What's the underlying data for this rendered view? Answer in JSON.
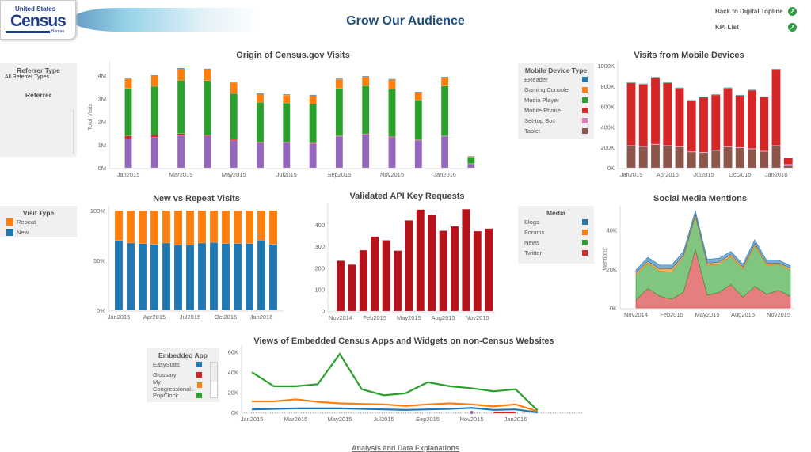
{
  "header": {
    "logo_text": [
      "United States",
      "Census",
      "Bureau"
    ],
    "title": "Grow Our Audience",
    "links": [
      {
        "label": "Back to Digital Topline",
        "icon": "arrow-circle-icon"
      },
      {
        "label": "KPI List",
        "icon": "arrow-circle-icon"
      }
    ]
  },
  "filters": {
    "referrer_type": {
      "title": "Referrer Type",
      "value": "All Referrer Types"
    },
    "referrer": {
      "title": "Referrer"
    }
  },
  "legends": {
    "mobile": {
      "title": "Mobile Device Type",
      "items": [
        {
          "label": "EReader",
          "color": "#1f77b4"
        },
        {
          "label": "Gaming Console",
          "color": "#ff7f0e"
        },
        {
          "label": "Media Player",
          "color": "#2ca02c"
        },
        {
          "label": "Mobile Phone",
          "color": "#d62728"
        },
        {
          "label": "Set-top Box",
          "color": "#e377c2"
        },
        {
          "label": "Tablet",
          "color": "#8c564b"
        }
      ]
    },
    "visit": {
      "title": "Visit Type",
      "items": [
        {
          "label": "Repeat",
          "color": "#ff7f0e"
        },
        {
          "label": "New",
          "color": "#1f77b4"
        }
      ]
    },
    "media": {
      "title": "Media",
      "items": [
        {
          "label": "Blogs",
          "color": "#1f77b4"
        },
        {
          "label": "Forums",
          "color": "#ff7f0e"
        },
        {
          "label": "News",
          "color": "#2ca02c"
        },
        {
          "label": "Twitter",
          "color": "#d62728"
        }
      ]
    },
    "embedded": {
      "title": "Embedded App",
      "items": [
        {
          "label": "EasyStats",
          "color": "#1f77b4"
        },
        {
          "label": "Glossary",
          "color": "#d62728"
        },
        {
          "label": "My Congressional..",
          "color": "#ff7f0e"
        },
        {
          "label": "PopClock",
          "color": "#2ca02c"
        }
      ]
    }
  },
  "chart_data": [
    {
      "id": "origin",
      "type": "bar",
      "stacked": true,
      "title": "Origin of Census.gov Visits",
      "ylabel": "Total Visits",
      "xlabel": "",
      "ylim": [
        0,
        4.4
      ],
      "unit": "M",
      "yticks": [
        "0M",
        "1M",
        "2M",
        "3M",
        "4M"
      ],
      "xticks": [
        "Jan2015",
        "Mar2015",
        "May2015",
        "Jul2015",
        "Sep2015",
        "Nov2015",
        "Jan2016"
      ],
      "categories": [
        "Jan2015",
        "Feb2015",
        "Mar2015",
        "Apr2015",
        "May2015",
        "Jun2015",
        "Jul2015",
        "Aug2015",
        "Sep2015",
        "Oct2015",
        "Nov2015",
        "Dec2015",
        "Jan2016",
        "Feb2016"
      ],
      "series": [
        {
          "color": "#9467bd",
          "values": [
            1.25,
            1.32,
            1.4,
            1.38,
            1.18,
            1.08,
            1.08,
            1.05,
            1.36,
            1.45,
            1.32,
            1.19,
            1.36,
            0.16
          ]
        },
        {
          "color": "#d62728",
          "values": [
            0.13,
            0.1,
            0.08,
            0.04,
            0.05,
            0.02,
            0.02,
            0.03,
            0.02,
            0.02,
            0.03,
            0.02,
            0.02,
            0.02
          ]
        },
        {
          "color": "#2ca02c",
          "values": [
            2.05,
            2.1,
            2.3,
            2.35,
            1.98,
            1.73,
            1.7,
            1.67,
            2.05,
            2.07,
            2.05,
            1.72,
            2.15,
            0.28
          ]
        },
        {
          "color": "#ff7f0e",
          "values": [
            0.43,
            0.45,
            0.5,
            0.48,
            0.48,
            0.36,
            0.34,
            0.37,
            0.39,
            0.39,
            0.41,
            0.32,
            0.37,
            0.03
          ]
        },
        {
          "color": "#1f77b4",
          "values": [
            0.03,
            0.03,
            0.03,
            0.03,
            0.03,
            0.03,
            0.03,
            0.03,
            0.03,
            0.03,
            0.03,
            0.03,
            0.03,
            0.02
          ]
        }
      ]
    },
    {
      "id": "mobile",
      "type": "bar",
      "stacked": true,
      "title": "Visits from Mobile Devices",
      "ylabel": "",
      "xlabel": "",
      "ylim": [
        0,
        1000
      ],
      "unit": "K",
      "yticks": [
        "0K",
        "200K",
        "400K",
        "600K",
        "800K",
        "1000K"
      ],
      "xticks": [
        "Jan2015",
        "Apr2015",
        "Jul2015",
        "Oct2015",
        "Jan2016"
      ],
      "categories": [
        "Jan2015",
        "Feb2015",
        "Mar2015",
        "Apr2015",
        "May2015",
        "Jun2015",
        "Jul2015",
        "Aug2015",
        "Sep2015",
        "Oct2015",
        "Nov2015",
        "Dec2015",
        "Jan2016",
        "Feb2016"
      ],
      "series": [
        {
          "name": "Tablet",
          "color": "#8c564b",
          "values": [
            215,
            208,
            228,
            215,
            205,
            155,
            148,
            170,
            205,
            195,
            185,
            160,
            215,
            20
          ]
        },
        {
          "name": "Set-top Box",
          "color": "#e377c2",
          "values": [
            5,
            5,
            5,
            5,
            5,
            5,
            5,
            5,
            5,
            5,
            5,
            5,
            5,
            15
          ]
        },
        {
          "name": "Mobile Phone",
          "color": "#d62728",
          "values": [
            612,
            605,
            648,
            612,
            565,
            495,
            540,
            540,
            565,
            510,
            570,
            530,
            745,
            60
          ]
        },
        {
          "name": "Media Player",
          "color": "#2ca02c",
          "values": [
            3,
            3,
            3,
            6,
            8,
            6,
            2,
            2,
            8,
            2,
            2,
            2,
            2,
            0
          ]
        },
        {
          "name": "Gaming Console",
          "color": "#ff7f0e",
          "values": [
            0,
            0,
            0,
            0,
            0,
            0,
            0,
            0,
            0,
            0,
            0,
            0,
            0,
            0
          ]
        },
        {
          "name": "EReader",
          "color": "#1f77b4",
          "values": [
            5,
            3,
            5,
            3,
            2,
            2,
            2,
            3,
            3,
            2,
            3,
            2,
            2,
            5
          ]
        }
      ]
    },
    {
      "id": "visit",
      "type": "bar",
      "stacked": true,
      "title": "New vs Repeat Visits",
      "ylabel": "",
      "xlabel": "",
      "ylim": [
        0,
        100
      ],
      "unit": "%",
      "yticks": [
        "0%",
        "50%",
        "100%"
      ],
      "xticks": [
        "Jan2015",
        "Apr2015",
        "Jul2015",
        "Oct2015",
        "Jan2016"
      ],
      "categories": [
        "Jan2015",
        "Feb2015",
        "Mar2015",
        "Apr2015",
        "May2015",
        "Jun2015",
        "Jul2015",
        "Aug2015",
        "Sep2015",
        "Oct2015",
        "Nov2015",
        "Dec2015",
        "Jan2016",
        "Feb2016"
      ],
      "series": [
        {
          "name": "New",
          "color": "#1f77b4",
          "values": [
            70,
            67.5,
            67,
            66,
            67.5,
            65.5,
            65.5,
            67.5,
            68,
            67,
            67,
            67,
            70.5,
            66
          ]
        },
        {
          "name": "Repeat",
          "color": "#ff7f0e",
          "values": [
            30,
            32.5,
            33,
            34,
            32.5,
            34.5,
            34.5,
            32.5,
            32,
            33,
            33,
            33,
            29.5,
            34
          ]
        }
      ]
    },
    {
      "id": "api",
      "type": "bar",
      "stacked": false,
      "title": "Validated API Key Requests",
      "ylabel": "",
      "xlabel": "",
      "ylim": [
        0,
        480
      ],
      "yticks": [
        "0",
        "100",
        "200",
        "300",
        "400"
      ],
      "xticks": [
        "Nov2014",
        "Feb2015",
        "May2015",
        "Aug2015",
        "Nov2015"
      ],
      "categories": [
        "Nov2014",
        "Dec2014",
        "Jan2015",
        "Feb2015",
        "Mar2015",
        "Apr2015",
        "May2015",
        "Jun2015",
        "Jul2015",
        "Aug2015",
        "Sep2015",
        "Oct2015",
        "Nov2015",
        "Dec2015"
      ],
      "series": [
        {
          "color": "#b5121b",
          "values": [
            233,
            215,
            282,
            345,
            328,
            280,
            420,
            470,
            447,
            372,
            392,
            472,
            370,
            382
          ]
        }
      ]
    },
    {
      "id": "social",
      "type": "area",
      "stacked": true,
      "title": "Social Media Mentions",
      "ylabel": "Mentions",
      "xlabel": "",
      "ylim": [
        0,
        50
      ],
      "unit": "K",
      "yticks": [
        "0K",
        "20K",
        "40K"
      ],
      "xticks": [
        "Nov2014",
        "Feb2015",
        "May2015",
        "Aug2015",
        "Nov2015"
      ],
      "categories": [
        "Nov2014",
        "Dec2014",
        "Jan2015",
        "Feb2015",
        "Mar2015",
        "Apr2015",
        "May2015",
        "Jun2015",
        "Jul2015",
        "Aug2015",
        "Sep2015",
        "Oct2015",
        "Nov2015",
        "Dec2015"
      ],
      "series": [
        {
          "name": "Twitter",
          "color": "#d62728",
          "values": [
            4,
            10,
            6,
            4.5,
            8,
            30,
            6.5,
            8,
            12,
            5.5,
            11,
            7,
            9,
            6
          ]
        },
        {
          "name": "News",
          "color": "#2ca02c",
          "values": [
            13,
            13,
            13,
            14,
            18,
            17,
            15.5,
            14.5,
            14.5,
            14.5,
            21,
            15,
            13.5,
            13.5
          ]
        },
        {
          "name": "Forums",
          "color": "#ff7f0e",
          "values": [
            1,
            1,
            1,
            1.5,
            1,
            1,
            1,
            1,
            1,
            1,
            1,
            1,
            0.5,
            1
          ]
        },
        {
          "name": "Blogs",
          "color": "#1f77b4",
          "values": [
            1.5,
            2,
            2,
            2,
            2,
            2,
            2,
            2,
            1.5,
            1.5,
            2,
            1.5,
            1.5,
            1.2
          ]
        }
      ]
    },
    {
      "id": "embedded",
      "type": "line",
      "title": "Views of Embedded Census Apps and Widgets on non-Census Websites",
      "ylabel": "",
      "xlabel": "",
      "ylim": [
        0,
        62
      ],
      "unit": "K",
      "yticks": [
        "0K",
        "20K",
        "40K",
        "60K"
      ],
      "xticks": [
        "Jan2015",
        "Mar2015",
        "May2015",
        "Jul2015",
        "Sep2015",
        "Nov2015",
        "Jan2016"
      ],
      "categories": [
        "Jan2015",
        "Feb2015",
        "Mar2015",
        "Apr2015",
        "May2015",
        "Jun2015",
        "Jul2015",
        "Aug2015",
        "Sep2015",
        "Oct2015",
        "Nov2015",
        "Dec2015",
        "Jan2016",
        "Feb2016"
      ],
      "series": [
        {
          "name": "PopClock",
          "color": "#2ca02c",
          "values": [
            40,
            26,
            26,
            28,
            58,
            23,
            17,
            19,
            30,
            26,
            24,
            21,
            23,
            2
          ]
        },
        {
          "name": "My Congressional..",
          "color": "#ff7f0e",
          "values": [
            11,
            11,
            13,
            10.5,
            9,
            8.5,
            8,
            6.5,
            8,
            9,
            8,
            6,
            8,
            1
          ]
        },
        {
          "name": "EasyStats",
          "color": "#1f77b4",
          "values": [
            3,
            3.5,
            4,
            4,
            4,
            3.5,
            3,
            2.5,
            3,
            3.5,
            4.5,
            2.5,
            3,
            0
          ]
        },
        {
          "name": "Glossary",
          "color": "#d62728",
          "values": [
            null,
            null,
            null,
            null,
            null,
            null,
            null,
            null,
            null,
            null,
            null,
            0,
            0,
            null
          ]
        },
        {
          "color": "#9467bd",
          "values": [
            null,
            null,
            null,
            null,
            null,
            null,
            null,
            null,
            null,
            null,
            0,
            null,
            null,
            null
          ]
        }
      ]
    }
  ],
  "footer": {
    "link": "Analysis and Data Explanations"
  }
}
